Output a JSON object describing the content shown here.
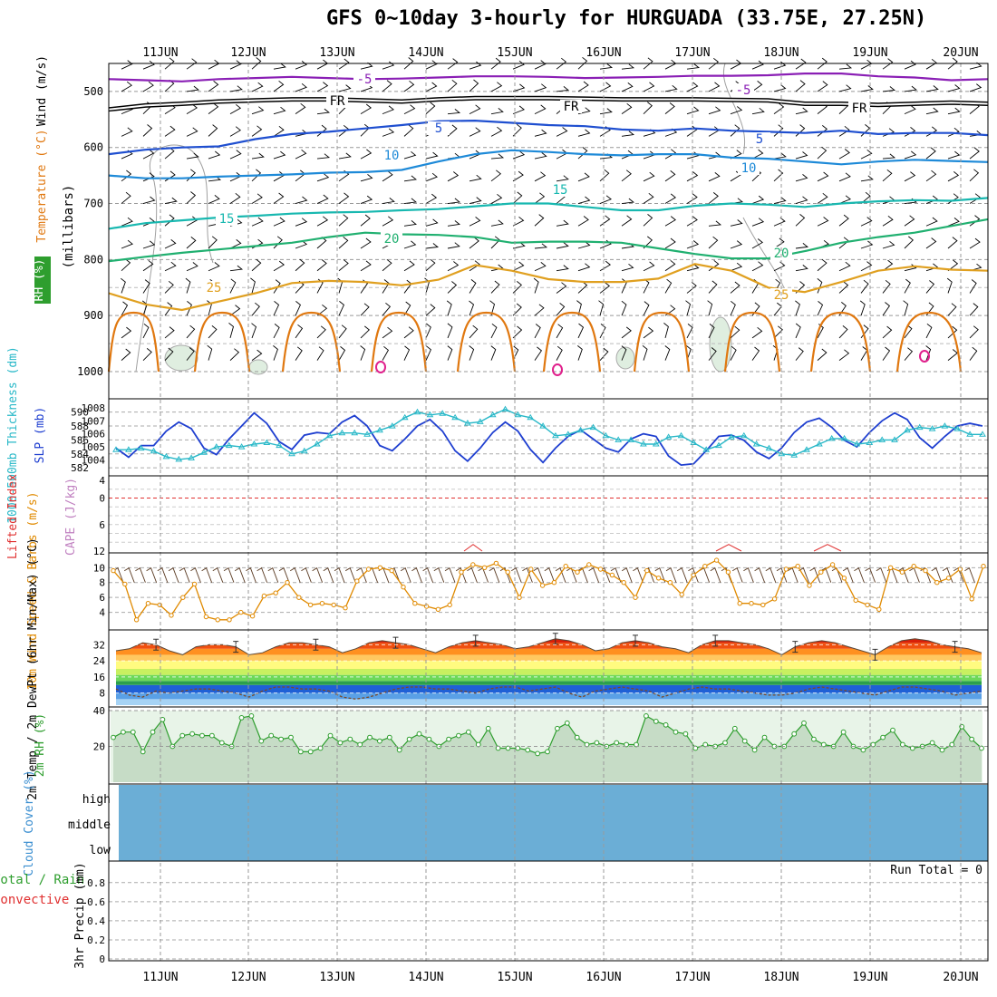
{
  "title": "GFS 0~10day 3-hourly for HURGUADA (33.75E, 27.25N)",
  "colors": {
    "wind_speed": "#e08a00",
    "rh": "#2e9e2e",
    "cape": "#c080c0",
    "lifted_index": "#e03030",
    "cloud": "#6baed6",
    "slp": "#1f3fd0",
    "thickness": "#28b8c8",
    "temp_minus5": "#8a1fb5",
    "temp_fr": "#000000",
    "temp_5": "#1f4fd0",
    "temp_10": "#1e8ad8",
    "temp_15": "#18b8b0",
    "temp_20": "#20b070",
    "temp_25": "#e0a020",
    "temp_30": "#e07810"
  },
  "chart_data": [
    {
      "panel": "upper-air",
      "type": "line",
      "x_axis": {
        "ticks": [
          "11JUN",
          "12JUN",
          "13JUN",
          "14JUN",
          "15JUN",
          "16JUN",
          "17JUN",
          "18JUN",
          "19JUN",
          "20JUN"
        ]
      },
      "y_axis": {
        "label": "(millibars)",
        "ticks": [
          500,
          600,
          700,
          800,
          900,
          1000
        ],
        "range": [
          450,
          1000
        ],
        "inverted": true
      },
      "side_labels": [
        "RH (%)",
        "Temperature (°C)",
        "Wind (m/s)"
      ],
      "contour_labels": [
        "-5",
        "FR",
        "5",
        "10",
        "15",
        "20",
        "25"
      ],
      "series": [
        {
          "label": "-5",
          "values": [
            478,
            480,
            482,
            478,
            476,
            474,
            476,
            478,
            477,
            475,
            473,
            473,
            474,
            476,
            475,
            474,
            472,
            472,
            471,
            468,
            468,
            473,
            475,
            480,
            478
          ]
        },
        {
          "label": "FR",
          "values": [
            532,
            525,
            522,
            518,
            516,
            514,
            514,
            516,
            518,
            514,
            512,
            512,
            512,
            513,
            514,
            514,
            514,
            515,
            516,
            522,
            522,
            524,
            522,
            520,
            522
          ]
        },
        {
          "label": "5",
          "values": [
            612,
            604,
            600,
            598,
            585,
            576,
            572,
            566,
            560,
            553,
            552,
            556,
            560,
            562,
            568,
            570,
            566,
            570,
            572,
            574,
            570,
            576,
            574,
            574,
            578
          ]
        },
        {
          "label": "10",
          "values": [
            650,
            655,
            655,
            652,
            650,
            648,
            645,
            644,
            640,
            625,
            612,
            605,
            608,
            612,
            614,
            612,
            612,
            618,
            620,
            625,
            630,
            625,
            622,
            624,
            626
          ]
        },
        {
          "label": "15",
          "values": [
            745,
            735,
            730,
            725,
            722,
            718,
            716,
            715,
            712,
            710,
            705,
            700,
            700,
            706,
            712,
            712,
            704,
            700,
            702,
            706,
            700,
            696,
            694,
            695,
            690
          ]
        },
        {
          "label": "20",
          "values": [
            803,
            795,
            788,
            782,
            776,
            770,
            760,
            752,
            755,
            756,
            760,
            770,
            768,
            768,
            770,
            780,
            790,
            798,
            798,
            785,
            770,
            760,
            752,
            740,
            728
          ]
        },
        {
          "label": "25",
          "values": [
            860,
            880,
            890,
            875,
            860,
            842,
            838,
            840,
            846,
            836,
            810,
            820,
            835,
            840,
            840,
            834,
            808,
            820,
            850,
            858,
            840,
            820,
            812,
            818,
            820
          ]
        }
      ]
    },
    {
      "panel": "slp-thickness",
      "type": "line",
      "ylabel_left": "1000-500mb Thickness (dm)",
      "ylabel_right": "SLP (mb)",
      "y_left_ticks": [
        582,
        584,
        586,
        588,
        590
      ],
      "y_right_ticks": [
        1004,
        1005,
        1006,
        1007,
        1008
      ],
      "series": [
        {
          "name": "SLP",
          "axis": "right",
          "values": [
            1004.9,
            1004.2,
            1005.1,
            1005.1,
            1006.2,
            1006.9,
            1006.4,
            1004.9,
            1004.4,
            1005.6,
            1006.6,
            1007.6,
            1006.8,
            1005.4,
            1004.8,
            1005.9,
            1006.1,
            1006.0,
            1006.9,
            1007.4,
            1006.6,
            1005.1,
            1004.7,
            1005.6,
            1006.6,
            1007.1,
            1006.2,
            1004.7,
            1003.9,
            1004.9,
            1006.1,
            1006.9,
            1006.2,
            1004.8,
            1003.8,
            1004.9,
            1005.8,
            1006.3,
            1005.6,
            1004.9,
            1004.6,
            1005.6,
            1006.0,
            1005.8,
            1004.3,
            1003.6,
            1003.7,
            1004.7,
            1005.8,
            1005.9,
            1005.5,
            1004.6,
            1004.1,
            1004.9,
            1006.1,
            1006.9,
            1007.2,
            1006.5,
            1005.5,
            1005.0,
            1006.1,
            1007.0,
            1007.6,
            1007.1,
            1005.7,
            1004.9,
            1005.8,
            1006.6,
            1006.8,
            1006.6
          ]
        },
        {
          "name": "Thickness",
          "axis": "left",
          "values": [
            584.6,
            584.6,
            584.8,
            584.4,
            583.6,
            583.2,
            583.4,
            584.2,
            585.0,
            585.2,
            585.0,
            585.4,
            585.6,
            585.2,
            584.0,
            584.4,
            585.4,
            586.6,
            587.0,
            587.0,
            586.8,
            587.4,
            588.0,
            589.2,
            590.0,
            589.6,
            589.8,
            589.2,
            588.4,
            588.6,
            589.6,
            590.4,
            589.6,
            589.2,
            588.0,
            586.6,
            586.8,
            587.4,
            587.8,
            586.6,
            586.0,
            586.0,
            585.4,
            585.4,
            586.4,
            586.6,
            585.6,
            584.6,
            585.2,
            586.4,
            586.6,
            585.4,
            584.8,
            584.0,
            583.8,
            584.6,
            585.4,
            586.2,
            586.2,
            585.4,
            585.6,
            586.0,
            586.0,
            587.4,
            587.8,
            587.6,
            588.0,
            587.6,
            586.8,
            586.8
          ]
        }
      ]
    },
    {
      "panel": "lifted-index-cape",
      "type": "line",
      "ylabel_left": "Lifted Index",
      "ylabel_right": "CAPE (J/kg)",
      "y_ticks": [
        -4,
        -2,
        0,
        2,
        4,
        6,
        8,
        10,
        12
      ],
      "y_tick_labels": [
        "4",
        "0",
        "6",
        "12"
      ],
      "series": [
        {
          "name": "Lifted Index",
          "values": []
        }
      ]
    },
    {
      "panel": "wind-10m",
      "type": "line",
      "ylabel": "10m Wind Speed & Barbs (m/s)",
      "y_ticks": [
        4,
        6,
        8,
        10
      ],
      "ylim": [
        2,
        11.5
      ],
      "series": [
        {
          "name": "Wind Speed",
          "values": [
            9.6,
            7.8,
            3.0,
            5.2,
            5.0,
            3.6,
            6.0,
            7.8,
            3.4,
            3.0,
            3.0,
            4.0,
            3.5,
            6.2,
            6.6,
            8.0,
            6.0,
            5.0,
            5.2,
            5.0,
            4.6,
            8.2,
            9.8,
            10.0,
            9.6,
            7.4,
            5.2,
            4.8,
            4.4,
            5.0,
            9.4,
            10.4,
            10.0,
            10.6,
            9.4,
            6.0,
            9.8,
            7.6,
            8.0,
            10.2,
            9.4,
            10.4,
            9.8,
            9.0,
            8.0,
            6.0,
            9.6,
            8.6,
            8.0,
            6.4,
            9.0,
            10.2,
            11.0,
            9.4,
            5.2,
            5.2,
            5.0,
            5.8,
            9.8,
            10.2,
            7.6,
            9.4,
            10.4,
            8.6,
            5.6,
            5.0,
            4.4,
            10.0,
            9.4,
            10.2,
            9.6,
            8.0,
            8.6,
            9.8,
            5.8,
            10.2
          ]
        }
      ]
    },
    {
      "panel": "temperature-2m",
      "type": "area",
      "ylabel": "2m Temp / 2m DewPt (6hr Min/Max) (°C)",
      "y_ticks": [
        8,
        16,
        24,
        32
      ],
      "ylim": [
        2,
        38
      ],
      "series": [
        {
          "name": "2m Temp",
          "values": [
            29,
            30,
            33,
            32,
            29,
            27,
            31,
            32,
            32,
            31,
            27,
            28,
            31,
            33,
            33,
            32,
            31,
            28,
            30,
            33,
            34,
            33,
            32,
            30,
            28,
            31,
            33,
            34,
            33,
            32,
            30,
            31,
            33,
            35,
            34,
            32,
            29,
            30,
            33,
            34,
            33,
            31,
            30,
            28,
            32,
            34,
            34,
            33,
            32,
            30,
            27,
            31,
            33,
            34,
            33,
            31,
            29,
            27,
            31,
            34,
            35,
            34,
            32,
            31,
            30,
            28
          ]
        },
        {
          "name": "2m DewPt",
          "values": [
            10,
            7,
            6,
            9,
            8,
            9,
            10,
            10,
            9,
            8,
            6,
            9,
            11,
            11,
            10,
            10,
            9,
            6,
            5,
            6,
            8,
            10,
            11,
            11,
            10,
            10,
            9,
            8,
            10,
            11,
            11,
            9,
            10,
            11,
            8,
            6,
            9,
            10,
            11,
            10,
            9,
            6,
            8,
            10,
            11,
            10,
            10,
            9,
            8,
            7,
            7,
            8,
            10,
            11,
            10,
            9,
            8,
            7,
            9,
            11,
            11,
            10,
            9,
            7,
            8,
            9
          ]
        }
      ]
    },
    {
      "panel": "rh-2m",
      "type": "area",
      "ylabel": "2m RH (%)",
      "y_ticks": [
        20,
        40
      ],
      "ylim": [
        0,
        40
      ],
      "series": [
        {
          "name": "2m RH",
          "values": [
            25,
            28,
            28,
            17,
            28,
            35,
            20,
            26,
            27,
            26,
            26,
            22,
            20,
            36,
            37,
            23,
            26,
            24,
            25,
            17,
            17,
            19,
            26,
            22,
            24,
            21,
            25,
            23,
            25,
            18,
            24,
            27,
            24,
            20,
            24,
            26,
            28,
            21,
            30,
            19,
            19,
            19,
            18,
            16,
            17,
            30,
            33,
            25,
            21,
            22,
            20,
            22,
            21,
            21,
            37,
            34,
            32,
            28,
            27,
            19,
            21,
            20,
            22,
            30,
            23,
            18,
            25,
            20,
            20,
            27,
            33,
            24,
            21,
            20,
            28,
            20,
            18,
            21,
            25,
            29,
            21,
            19,
            20,
            22,
            18,
            21,
            31,
            24,
            19
          ]
        }
      ]
    },
    {
      "panel": "cloud-cover",
      "type": "heatmap",
      "ylabel": "Cloud Cover (%)",
      "rows": [
        "high",
        "middle",
        "low"
      ]
    },
    {
      "panel": "precip",
      "type": "bar",
      "ylabel_left": "Total / Rain",
      "ylabel_left2": "Convective",
      "ylabel": "3hr Precip (mm)",
      "y_ticks": [
        0,
        0.2,
        0.4,
        0.6,
        0.8
      ],
      "y_tick_labels": [
        "0",
        "0.2",
        "0.4",
        "0.6",
        "0.8"
      ],
      "ylim": [
        0,
        0.95
      ],
      "run_total": "Run Total = 0",
      "values": []
    }
  ]
}
